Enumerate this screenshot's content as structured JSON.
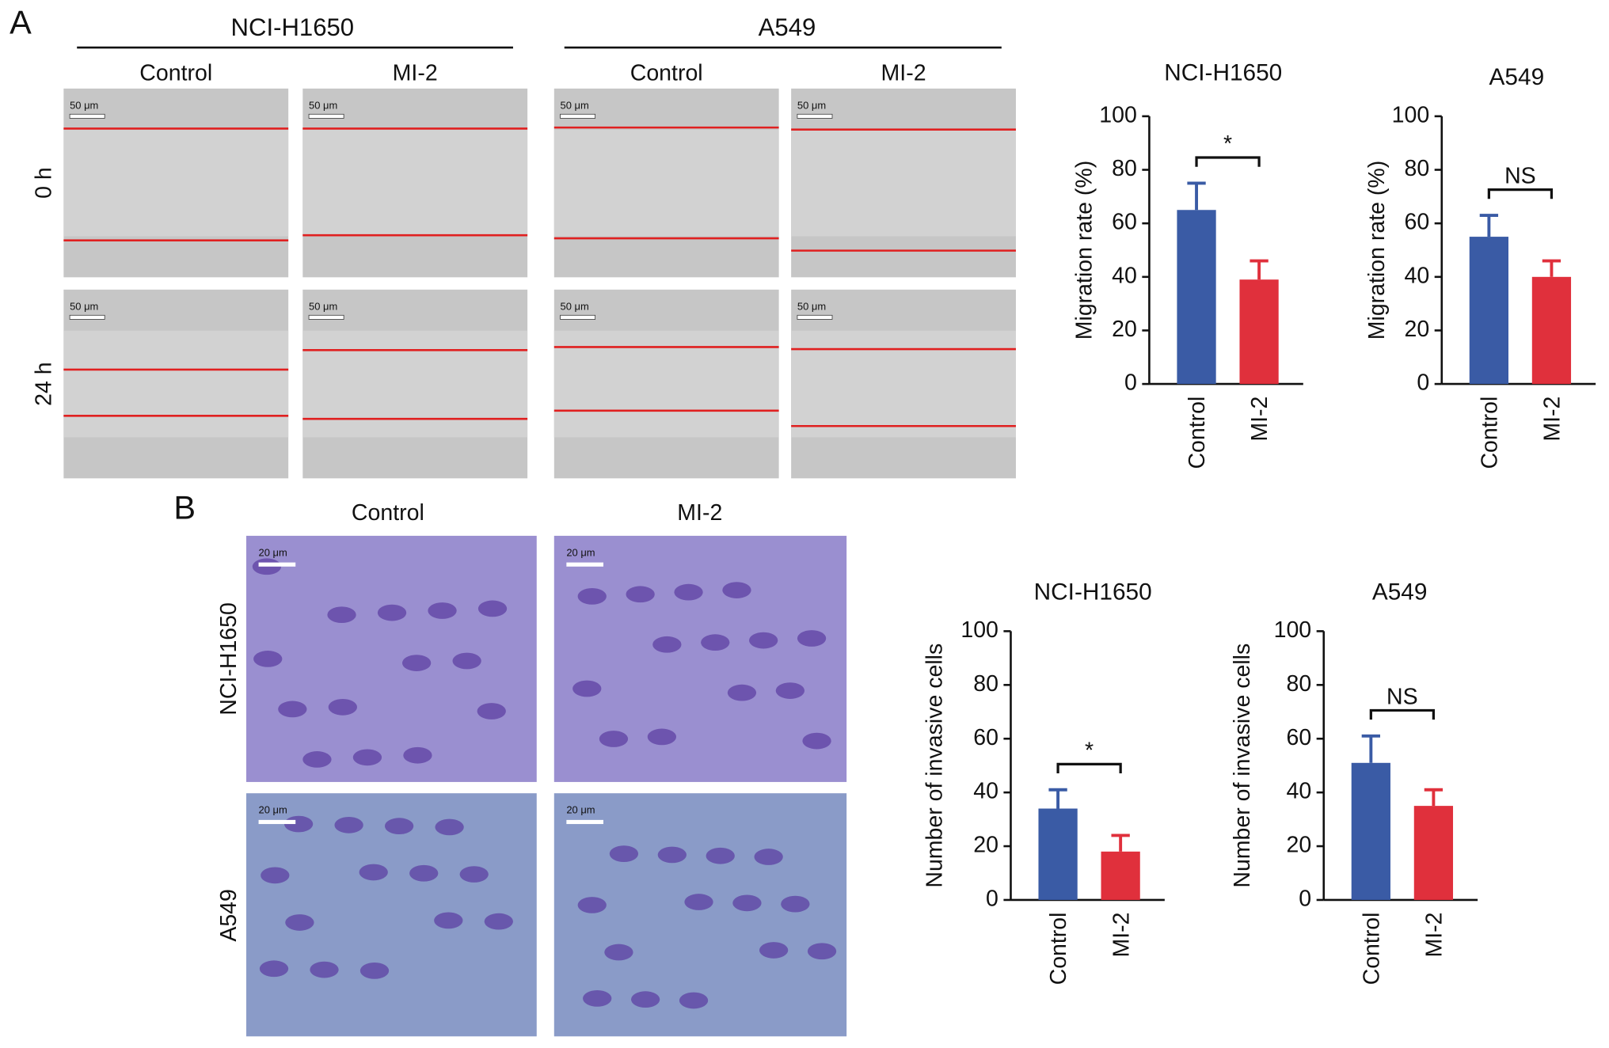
{
  "panel_labels": [
    "A",
    "B"
  ],
  "wound_healing": {
    "cell_lines": [
      "NCI-H1650",
      "A549"
    ],
    "conditions": [
      "Control",
      "MI-2"
    ],
    "times": [
      "0 h",
      "24 h"
    ],
    "scale_bar": "50 μm"
  },
  "invasion": {
    "conditions": [
      "Control",
      "MI-2"
    ],
    "cell_lines": [
      "NCI-H1650",
      "A549"
    ],
    "scale_bar": "20 μm"
  },
  "chart_data": [
    {
      "type": "bar",
      "title": "NCI-H1650",
      "y_label": "Migration rate (%)",
      "categories": [
        "Control",
        "MI-2"
      ],
      "values": [
        65,
        39
      ],
      "errors": [
        10,
        7
      ],
      "colors": [
        "#3a5ba5",
        "#e0303c"
      ],
      "ylim": [
        0,
        100
      ],
      "yticks": [
        0,
        20,
        40,
        60,
        80,
        100
      ],
      "annotation": "*"
    },
    {
      "type": "bar",
      "title": "A549",
      "y_label": "Migration rate (%)",
      "categories": [
        "Control",
        "MI-2"
      ],
      "values": [
        55,
        40
      ],
      "errors": [
        8,
        6
      ],
      "colors": [
        "#3a5ba5",
        "#e0303c"
      ],
      "ylim": [
        0,
        100
      ],
      "yticks": [
        0,
        20,
        40,
        60,
        80,
        100
      ],
      "annotation": "NS"
    },
    {
      "type": "bar",
      "title": "NCI-H1650",
      "y_label": "Number of invasive cells",
      "categories": [
        "Control",
        "MI-2"
      ],
      "values": [
        34,
        18
      ],
      "errors": [
        7,
        6
      ],
      "colors": [
        "#3a5ba5",
        "#e0303c"
      ],
      "ylim": [
        0,
        100
      ],
      "yticks": [
        0,
        20,
        40,
        60,
        80,
        100
      ],
      "annotation": "*"
    },
    {
      "type": "bar",
      "title": "A549",
      "y_label": "Number of invasive cells",
      "categories": [
        "Control",
        "MI-2"
      ],
      "values": [
        51,
        35
      ],
      "errors": [
        10,
        6
      ],
      "colors": [
        "#3a5ba5",
        "#e0303c"
      ],
      "ylim": [
        0,
        100
      ],
      "yticks": [
        0,
        20,
        40,
        60,
        80,
        100
      ],
      "annotation": "NS"
    }
  ]
}
